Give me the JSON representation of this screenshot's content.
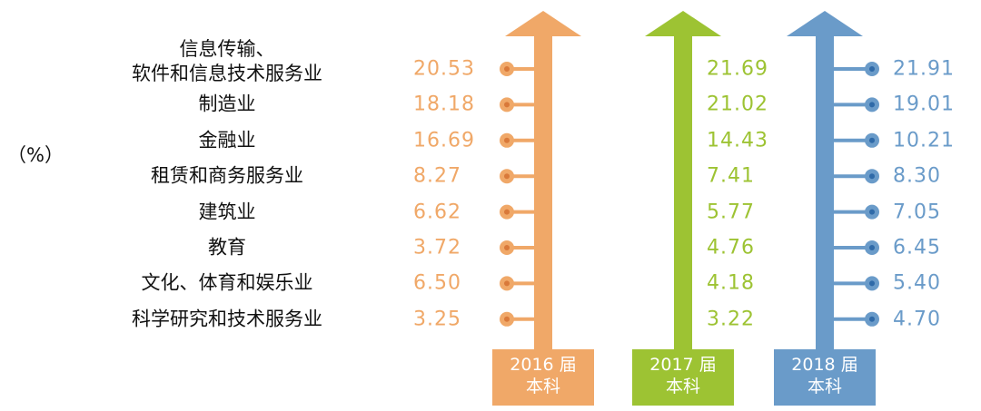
{
  "chart_data": {
    "type": "arrow-columns",
    "unit_label": "（%）",
    "categories": [
      "信息传输、\n软件和信息技术服务业",
      "制造业",
      "金融业",
      "租赁和商务服务业",
      "建筑业",
      "教育",
      "文化、体育和娱乐业",
      "科学研究和技术服务业"
    ],
    "series": [
      {
        "name": "2016 届",
        "subname": "本科",
        "color": "#f0a868",
        "side": "left",
        "dots": true,
        "values": [
          20.53,
          18.18,
          16.69,
          8.27,
          6.62,
          3.72,
          6.5,
          3.25
        ],
        "value_labels": [
          "20.53",
          "18.18",
          "16.69",
          "8.27",
          "6.62",
          "3.72",
          "6.50",
          "3.25"
        ]
      },
      {
        "name": "2017 届",
        "subname": "本科",
        "color": "#9dc333",
        "side": "right",
        "dots": false,
        "values": [
          21.69,
          21.02,
          14.43,
          7.41,
          5.77,
          4.76,
          4.18,
          3.22
        ],
        "value_labels": [
          "21.69",
          "21.02",
          "14.43",
          "7.41",
          "5.77",
          "4.76",
          "4.18",
          "3.22"
        ]
      },
      {
        "name": "2018 届",
        "subname": "本科",
        "color": "#6a9bc9",
        "side": "right",
        "dots": true,
        "values": [
          21.91,
          19.01,
          10.21,
          8.3,
          7.05,
          6.45,
          5.4,
          4.7
        ],
        "value_labels": [
          "21.91",
          "19.01",
          "10.21",
          "8.30",
          "7.05",
          "6.45",
          "5.40",
          "4.70"
        ]
      }
    ]
  }
}
